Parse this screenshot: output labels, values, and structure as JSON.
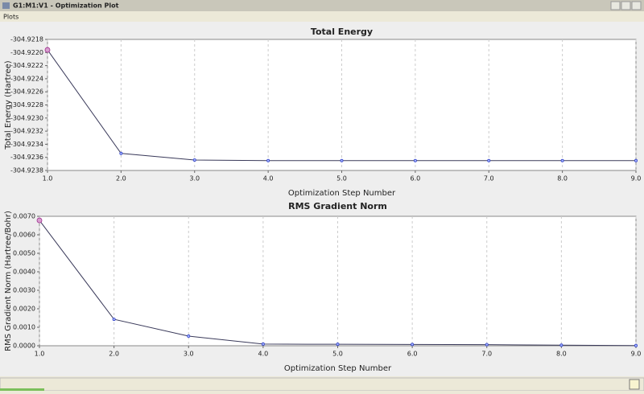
{
  "window": {
    "title": "G1:M1:V1 - Optimization Plot",
    "menu": [
      "Plots"
    ]
  },
  "chart_data": [
    {
      "type": "line",
      "title": "Total Energy",
      "x_label": "Optimization Step Number",
      "y_label": "Total Energy (Hartree)",
      "x": [
        1,
        2,
        3,
        4,
        5,
        6,
        7,
        8,
        9
      ],
      "series": [
        {
          "color": "#3a3a5a",
          "values": [
            -304.92196,
            -304.92354,
            -304.92364,
            -304.92365,
            -304.92365,
            -304.92365,
            -304.92365,
            -304.92365,
            -304.92365
          ]
        }
      ],
      "xlim": [
        1,
        9
      ],
      "xticks": [
        {
          "value": 1,
          "label": "1.0"
        },
        {
          "value": 2,
          "label": "2.0"
        },
        {
          "value": 3,
          "label": "3.0"
        },
        {
          "value": 4,
          "label": "4.0"
        },
        {
          "value": 5,
          "label": "5.0"
        },
        {
          "value": 6,
          "label": "6.0"
        },
        {
          "value": 7,
          "label": "7.0"
        },
        {
          "value": 8,
          "label": "8.0"
        },
        {
          "value": 9,
          "label": "9.0"
        }
      ],
      "ylim": [
        -304.9238,
        -304.9218
      ],
      "yticks": [
        -304.9218,
        {
          "value": -304.922,
          "label": "-304.9220"
        },
        -304.9222,
        -304.9224,
        -304.9226,
        -304.9228,
        {
          "value": -304.923,
          "label": "-304.9230"
        },
        -304.9232,
        -304.9234,
        -304.9236,
        -304.9238
      ],
      "grid": "x"
    },
    {
      "type": "line",
      "title": "RMS Gradient Norm",
      "x_label": "Optimization Step Number",
      "y_label": "RMS Gradient Norm (Hartree/Bohr)",
      "x": [
        1,
        2,
        3,
        4,
        5,
        6,
        7,
        8,
        9
      ],
      "series": [
        {
          "color": "#3a3a5a",
          "values": [
            0.00678,
            0.00143,
            0.00052,
            9e-05,
            8e-05,
            7e-05,
            6e-05,
            3e-05,
            1e-05
          ]
        }
      ],
      "xlim": [
        1,
        9
      ],
      "xticks": [
        {
          "value": 1,
          "label": "1.0"
        },
        {
          "value": 2,
          "label": "2.0"
        },
        {
          "value": 3,
          "label": "3.0"
        },
        {
          "value": 4,
          "label": "4.0"
        },
        {
          "value": 5,
          "label": "5.0"
        },
        {
          "value": 6,
          "label": "6.0"
        },
        {
          "value": 7,
          "label": "7.0"
        },
        {
          "value": 8,
          "label": "8.0"
        },
        {
          "value": 9,
          "label": "9.0"
        }
      ],
      "ylim": [
        0,
        0.007
      ],
      "yticks": [
        {
          "value": 0,
          "label": "0.0000"
        },
        {
          "value": 0.001,
          "label": "0.0010"
        },
        {
          "value": 0.002,
          "label": "0.0020"
        },
        {
          "value": 0.003,
          "label": "0.0030"
        },
        {
          "value": 0.004,
          "label": "0.0040"
        },
        {
          "value": 0.005,
          "label": "0.0050"
        },
        {
          "value": 0.006,
          "label": "0.0060"
        },
        {
          "value": 0.007,
          "label": "0.0070"
        }
      ],
      "grid": "x"
    }
  ]
}
